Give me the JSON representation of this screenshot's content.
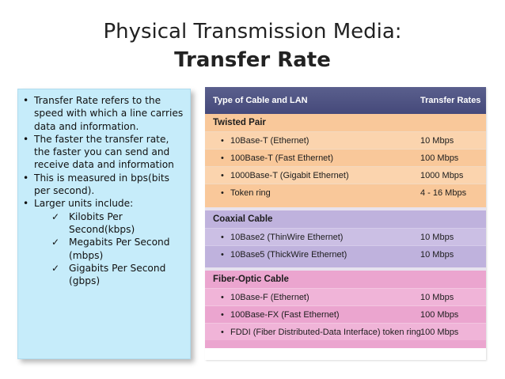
{
  "title": {
    "line1": "Physical Transmission Media:",
    "line2": "Transfer Rate"
  },
  "bullets": {
    "items": [
      "Transfer Rate refers to the speed with which a line carries data and information.",
      "The faster the transfer rate, the faster you can send and receive data and information",
      "This is measured in bps(bits per second).",
      "Larger units include:"
    ],
    "subitems": [
      "Kilobits Per Second(kbps)",
      "Megabits Per Second (mbps)",
      "Gigabits Per Second (gbps)"
    ],
    "check_glyph": "✓"
  },
  "table": {
    "header": {
      "cable": "Type of Cable and LAN",
      "rate": "Transfer Rates"
    },
    "sections": [
      {
        "name": "Twisted Pair",
        "color": "#f9c89a",
        "rows": [
          {
            "cable": "10Base-T (Ethernet)",
            "rate": "10 Mbps"
          },
          {
            "cable": "100Base-T (Fast Ethernet)",
            "rate": "100 Mbps"
          },
          {
            "cable": "1000Base-T (Gigabit Ethernet)",
            "rate": "1000 Mbps"
          },
          {
            "cable": "Token ring",
            "rate": "4 - 16 Mbps"
          }
        ]
      },
      {
        "name": "Coaxial Cable",
        "color": "#bfb2dd",
        "rows": [
          {
            "cable": "10Base2 (ThinWire Ethernet)",
            "rate": "10 Mbps"
          },
          {
            "cable": "10Base5 (ThickWire Ethernet)",
            "rate": "10 Mbps"
          }
        ]
      },
      {
        "name": "Fiber-Optic Cable",
        "color": "#eba5cf",
        "rows": [
          {
            "cable": "10Base-F (Ethernet)",
            "rate": "10 Mbps"
          },
          {
            "cable": "100Base-FX (Fast Ethernet)",
            "rate": "100 Mbps"
          },
          {
            "cable": "FDDI (Fiber Distributed-Data Interface) token ring",
            "rate": "100 Mbps"
          }
        ]
      }
    ],
    "bullet_glyph": "•"
  }
}
